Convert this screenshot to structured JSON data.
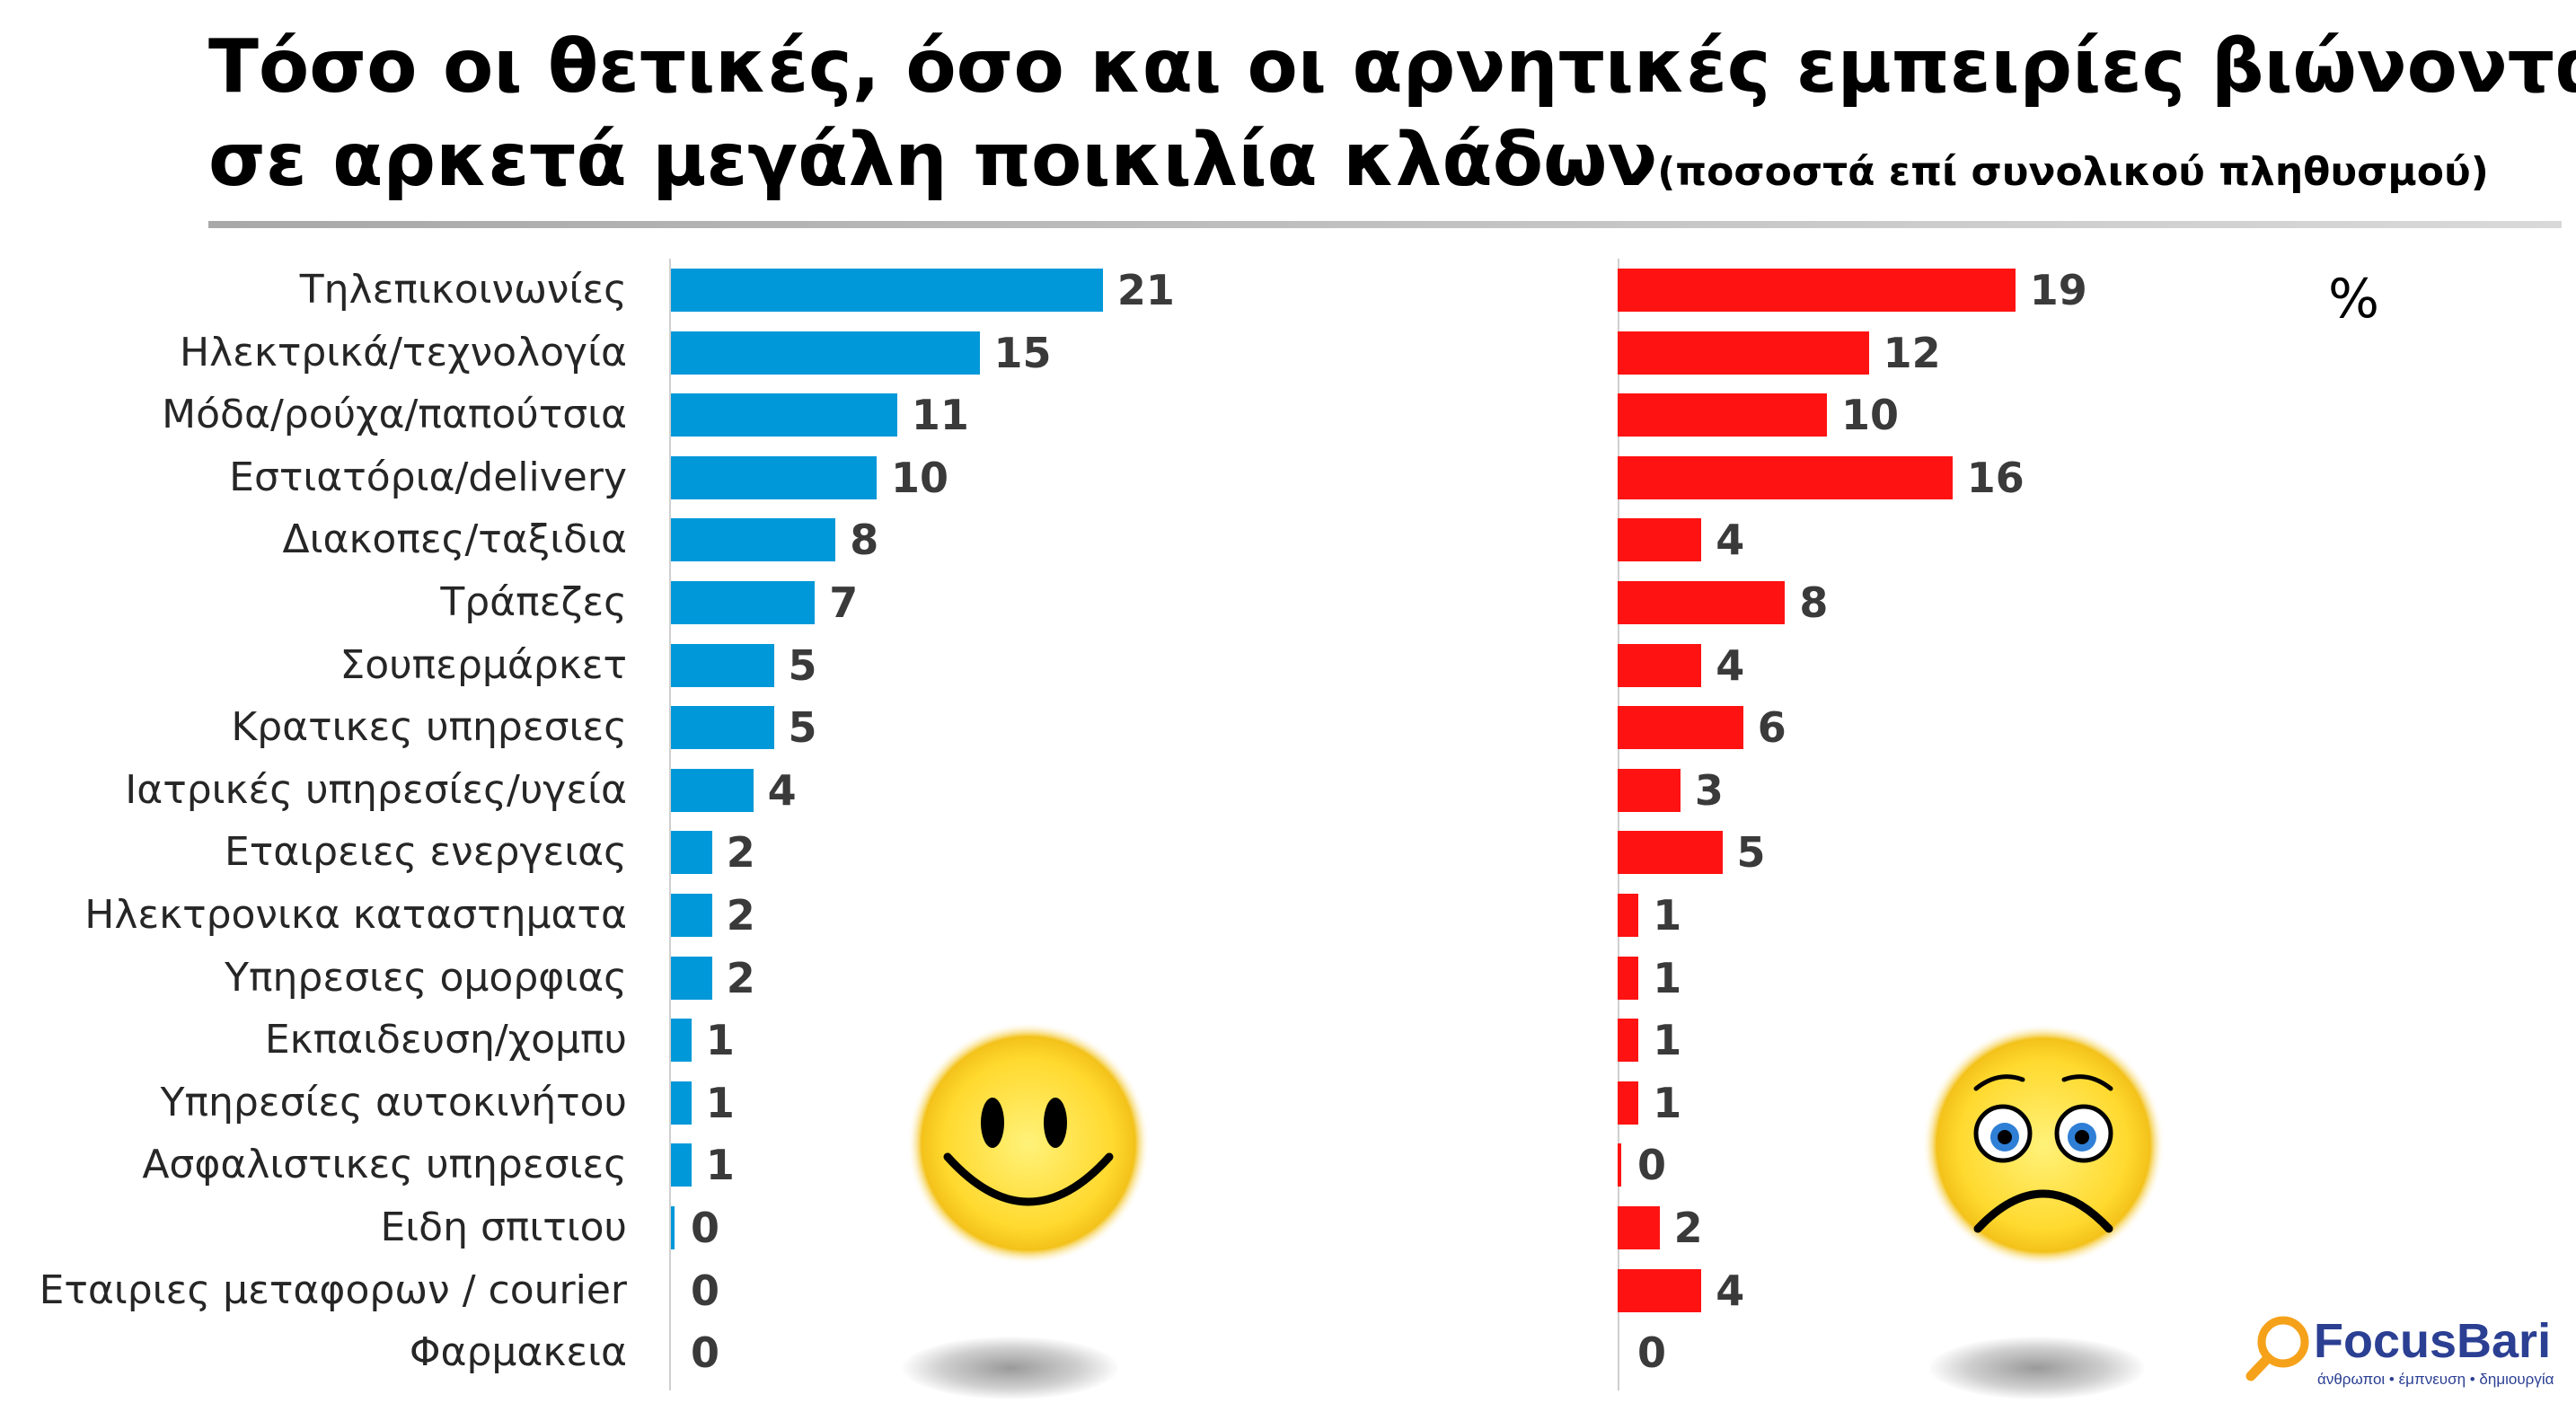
{
  "slide": {
    "title_line1": "Τόσο οι θετικές, όσο και οι αρνητικές εμπειρίες βιώνονται",
    "title_line2": "σε αρκετά μεγάλη ποικιλία κλάδων",
    "subtitle": "(ποσοστά επί συνολικού πληθυσμού)",
    "unit": "%"
  },
  "chart_data": {
    "type": "bar",
    "orientation": "horizontal",
    "unit": "%",
    "categories": [
      "Τηλεπικοινωνίες",
      "Ηλεκτρικά/τεχνολογία",
      "Μόδα/ρούχα/παπούτσια",
      "Εστιατόρια/delivery",
      "Διακοπες/ταξιδια",
      "Τράπεζες",
      "Σουπερμάρκετ",
      "Κρατικες υπηρεσιες",
      "Ιατρικές υπηρεσίες/υγεία",
      "Εταιρειες ενεργειας",
      "Ηλεκτρονικα καταστηματα",
      "Υπηρεσιες ομορφιας",
      "Εκπαιδευση/χομπυ",
      "Υπηρεσίες αυτοκινήτου",
      "Ασφαλιστικες υπηρεσιες",
      "Ειδη σπιτιου",
      "Εταιριες μεταφορων / courier",
      "Φαρμακεια"
    ],
    "series": [
      {
        "key": "positive",
        "color": "#0098d9",
        "values": [
          21,
          15,
          11,
          10,
          8,
          7,
          5,
          5,
          4,
          2,
          2,
          2,
          1,
          1,
          1,
          0,
          0,
          0
        ]
      },
      {
        "key": "negative",
        "color": "#ff1212",
        "values": [
          19,
          12,
          10,
          16,
          4,
          8,
          4,
          6,
          3,
          5,
          1,
          1,
          1,
          1,
          0,
          2,
          4,
          0
        ]
      }
    ],
    "panel_icons": [
      "smiley-face-icon",
      "sad-face-icon"
    ]
  },
  "logo": {
    "name": "FocusBari",
    "tagline": "άνθρωποι • έμπνευση • δημιουργία",
    "icon": "magnifier-icon"
  }
}
